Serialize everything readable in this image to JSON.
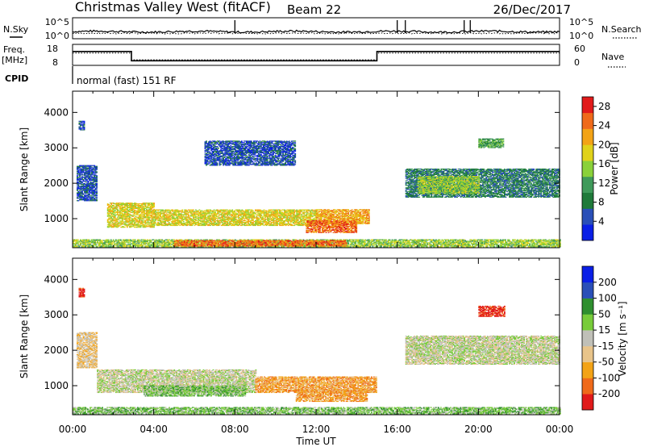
{
  "header": {
    "station": "Christmas Valley West (fitACF)",
    "beam": "Beam 22",
    "date": "26/Dec/2017"
  },
  "top_panels": {
    "nsky_label": "N.Sky",
    "nsearch_label": "N.Search",
    "noise_ticks": [
      "10^5",
      "10^0"
    ],
    "freq_label": "Freq.",
    "freq_unit": "[MHz]",
    "freq_ticks": [
      "18",
      "8"
    ],
    "nave_label": "Nave",
    "nave_ticks": [
      "60",
      "0"
    ],
    "cpid_label": "CPID",
    "cpid_value": "normal (fast) 151 RF"
  },
  "colors": {
    "power": [
      "#0a1fe6",
      "#2a4fb8",
      "#1f7a3a",
      "#3f9a5a",
      "#8ad13a",
      "#e0d21a",
      "#f3a316",
      "#ef6a1a",
      "#e11a1a"
    ],
    "velocity": [
      "#e11a1a",
      "#ef6a1a",
      "#f3a316",
      "#e8c48a",
      "#c0c0b8",
      "#78cc3a",
      "#2f8f2f",
      "#2a4fb8",
      "#0a1fe6"
    ]
  },
  "chart_data": [
    {
      "type": "line",
      "title": "N.Sky / N.Search noise",
      "x": [
        "00:00",
        "04:00",
        "08:00",
        "12:00",
        "16:00",
        "20:00",
        "00:00"
      ],
      "ylabels": [
        "10^5",
        "10^0"
      ],
      "series": [
        {
          "name": "N.Sky",
          "style": "solid",
          "spikes_hours": [
            8.0,
            16.0,
            16.4,
            19.3,
            19.6
          ]
        },
        {
          "name": "N.Search",
          "style": "dotted"
        }
      ]
    },
    {
      "type": "line",
      "title": "Freq. / Nave",
      "x_hours": [
        0,
        2.9,
        2.9,
        15.0,
        15.0,
        24
      ],
      "series": [
        {
          "name": "Freq. [MHz]",
          "range": [
            8,
            18
          ],
          "values": [
            14.6,
            14.6,
            10.2,
            10.2,
            14.6,
            14.6
          ]
        },
        {
          "name": "Nave",
          "range": [
            0,
            60
          ],
          "style": "dotted",
          "values": [
            35,
            35,
            16,
            16,
            35,
            35
          ]
        }
      ]
    },
    {
      "type": "heatmap",
      "title": "Power [dB]",
      "ylabel": "Slant Range [km]",
      "xlabel": "Time UT",
      "ylim": [
        180,
        4600
      ],
      "xlim_hours": [
        0,
        24
      ],
      "yticks": [
        1000,
        2000,
        3000,
        4000
      ],
      "xticks": [
        "00:00",
        "04:00",
        "08:00",
        "12:00",
        "16:00",
        "20:00",
        "00:00"
      ],
      "colorbar_label": "Power [dB]",
      "colorbar_ticks": [
        4,
        8,
        12,
        16,
        20,
        24,
        28
      ],
      "colorbar_range": [
        0,
        30
      ],
      "regions": [
        {
          "t0": 1.7,
          "t1": 4.0,
          "r0": 750,
          "r1": 1450,
          "level": 5
        },
        {
          "t0": 4.0,
          "t1": 12.0,
          "r0": 800,
          "r1": 1250,
          "level": 5
        },
        {
          "t0": 12.0,
          "t1": 14.6,
          "r0": 850,
          "r1": 1250,
          "level": 6
        },
        {
          "t0": 11.5,
          "t1": 14.0,
          "r0": 600,
          "r1": 950,
          "level": 7
        },
        {
          "t0": 0.0,
          "t1": 24.0,
          "r0": 200,
          "r1": 420,
          "level": 4
        },
        {
          "t0": 5.0,
          "t1": 13.5,
          "r0": 220,
          "r1": 380,
          "level": 7
        },
        {
          "t0": 0.2,
          "t1": 1.2,
          "r0": 1500,
          "r1": 2500,
          "level": 1
        },
        {
          "t0": 16.4,
          "t1": 24.0,
          "r0": 1600,
          "r1": 2400,
          "level": 2
        },
        {
          "t0": 17.0,
          "t1": 20.0,
          "r0": 1700,
          "r1": 2200,
          "level": 4
        },
        {
          "t0": 20.0,
          "t1": 21.2,
          "r0": 3000,
          "r1": 3250,
          "level": 3
        },
        {
          "t0": 6.5,
          "t1": 11.0,
          "r0": 2500,
          "r1": 3200,
          "level": 1
        },
        {
          "t0": 0.3,
          "t1": 0.6,
          "r0": 3500,
          "r1": 3750,
          "level": 1
        }
      ]
    },
    {
      "type": "heatmap",
      "title": "Velocity [m s^-1]",
      "ylabel": "Slant Range [km]",
      "xlabel": "Time UT",
      "ylim": [
        180,
        4600
      ],
      "xlim_hours": [
        0,
        24
      ],
      "yticks": [
        1000,
        2000,
        3000,
        4000
      ],
      "xticks": [
        "00:00",
        "04:00",
        "08:00",
        "12:00",
        "16:00",
        "20:00",
        "00:00"
      ],
      "colorbar_label": "Velocity [m s⁻¹]",
      "colorbar_ticks": [
        200,
        100,
        50,
        15,
        -15,
        -50,
        -100,
        -200
      ],
      "regions": [
        {
          "t0": 1.2,
          "t1": 9.0,
          "r0": 800,
          "r1": 1450,
          "level": 4
        },
        {
          "t0": 9.0,
          "t1": 15.0,
          "r0": 800,
          "r1": 1250,
          "level": 2
        },
        {
          "t0": 3.5,
          "t1": 8.5,
          "r0": 700,
          "r1": 1000,
          "level": 5
        },
        {
          "t0": 11.0,
          "t1": 14.5,
          "r0": 550,
          "r1": 900,
          "level": 2
        },
        {
          "t0": 0.0,
          "t1": 24.0,
          "r0": 200,
          "r1": 380,
          "level": 5
        },
        {
          "t0": 16.4,
          "t1": 24.0,
          "r0": 1600,
          "r1": 2400,
          "level": 4
        },
        {
          "t0": 20.0,
          "t1": 21.3,
          "r0": 2950,
          "r1": 3250,
          "level": 0
        },
        {
          "t0": 0.3,
          "t1": 0.6,
          "r0": 3500,
          "r1": 3750,
          "level": 0
        },
        {
          "t0": 0.2,
          "t1": 1.2,
          "r0": 1500,
          "r1": 2500,
          "level": 3
        }
      ]
    }
  ]
}
